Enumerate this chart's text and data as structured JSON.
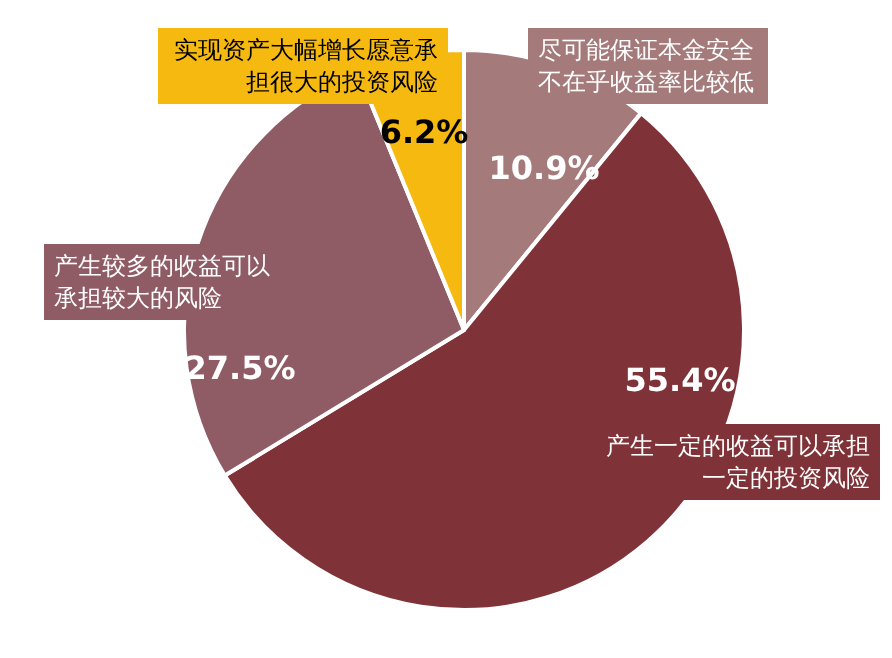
{
  "chart_data": {
    "type": "pie",
    "categories": [
      "尽可能保证本金安全不在乎收益率比较低",
      "产生一定的收益可以承担一定的投资风险",
      "产生较多的收益可以承担较大的风险",
      "实现资产大幅增长愿意承担很大的投资风险"
    ],
    "values": [
      10.9,
      55.4,
      27.5,
      6.2
    ],
    "value_labels": [
      "10.9%",
      "55.4%",
      "27.5%",
      "6.2%"
    ],
    "colors": [
      "#a57a7b",
      "#7f3237",
      "#8f5b65",
      "#f6b910"
    ]
  }
}
